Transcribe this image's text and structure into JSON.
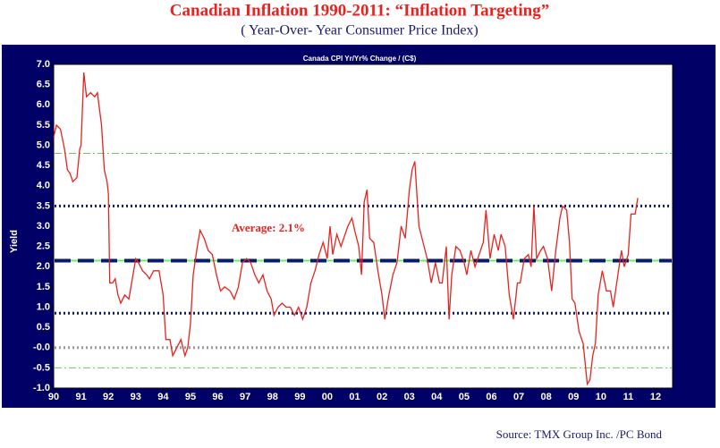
{
  "chart_data": {
    "type": "line",
    "title": "Canadian Inflation 1990-2011: “Inflation Targeting”",
    "subtitle": "( Year-Over- Year Consumer Price Index)",
    "panel_title": "Canada CPI Yr/Yr% Change / (C$)",
    "y_label": "Yield",
    "annotation": "Average: 2.1%",
    "source": "Source: TMX Group Inc. /PC Bond",
    "xlim": [
      1990,
      2012.62
    ],
    "ylim": [
      -1,
      7
    ],
    "xticks": [
      {
        "value": 1990,
        "label": "90"
      },
      {
        "value": 1991,
        "label": "91"
      },
      {
        "value": 1992,
        "label": "92"
      },
      {
        "value": 1993,
        "label": "93"
      },
      {
        "value": 1994,
        "label": "94"
      },
      {
        "value": 1995,
        "label": "95"
      },
      {
        "value": 1996,
        "label": "96"
      },
      {
        "value": 1997,
        "label": "97"
      },
      {
        "value": 1998,
        "label": "98"
      },
      {
        "value": 1999,
        "label": "99"
      },
      {
        "value": 2000,
        "label": "00"
      },
      {
        "value": 2001,
        "label": "01"
      },
      {
        "value": 2002,
        "label": "02"
      },
      {
        "value": 2003,
        "label": "03"
      },
      {
        "value": 2004,
        "label": "04"
      },
      {
        "value": 2005,
        "label": "05"
      },
      {
        "value": 2006,
        "label": "06"
      },
      {
        "value": 2007,
        "label": "07"
      },
      {
        "value": 2008,
        "label": "08"
      },
      {
        "value": 2009,
        "label": "09"
      },
      {
        "value": 2010,
        "label": "10"
      },
      {
        "value": 2011,
        "label": "11"
      },
      {
        "value": 2012,
        "label": "12"
      }
    ],
    "yticks": [
      {
        "value": 7,
        "label": "7.0"
      },
      {
        "value": 6.5,
        "label": "6.5"
      },
      {
        "value": 6,
        "label": "6.0"
      },
      {
        "value": 5.5,
        "label": "5.5"
      },
      {
        "value": 5,
        "label": "5.0"
      },
      {
        "value": 4.5,
        "label": "4.5"
      },
      {
        "value": 4,
        "label": "4.0"
      },
      {
        "value": 3.5,
        "label": "3.5"
      },
      {
        "value": 3,
        "label": "3.0"
      },
      {
        "value": 2.5,
        "label": "2.5"
      },
      {
        "value": 2,
        "label": "2.0"
      },
      {
        "value": 1.5,
        "label": "1.5"
      },
      {
        "value": 1,
        "label": "1.0"
      },
      {
        "value": 0.5,
        "label": "0.5"
      },
      {
        "value": 0,
        "label": "-0.0"
      },
      {
        "value": -0.5,
        "label": "-0.5"
      },
      {
        "value": -1,
        "label": "-1.0"
      }
    ],
    "reference_lines": [
      {
        "value": 4.8,
        "color": "#66cc66",
        "style": "dashdot"
      },
      {
        "value": -0.5,
        "color": "#66cc66",
        "style": "dashdot"
      },
      {
        "value": 0,
        "color": "#999999",
        "style": "dotted"
      },
      {
        "value": 2.15,
        "color": "#66ee66",
        "style": "solid"
      },
      {
        "value": 2.15,
        "color": "#0a1a6e",
        "style": "dashed"
      },
      {
        "value": 3.5,
        "color": "#0a1a6e",
        "style": "dotted"
      },
      {
        "value": 0.85,
        "color": "#0a1a6e",
        "style": "dotted"
      }
    ],
    "series": [
      {
        "color": "#e8231f",
        "x": [
          1990.0,
          1990.1,
          1990.25,
          1990.4,
          1990.5,
          1990.6,
          1990.7,
          1990.85,
          1990.95,
          1991.0,
          1991.1,
          1991.2,
          1991.35,
          1991.5,
          1991.6,
          1991.75,
          1991.85,
          1991.95,
          1992.0,
          1992.05,
          1992.15,
          1992.25,
          1992.35,
          1992.45,
          1992.6,
          1992.75,
          1992.9,
          1993.0,
          1993.1,
          1993.25,
          1993.4,
          1993.5,
          1993.65,
          1993.85,
          1994.0,
          1994.1,
          1994.25,
          1994.35,
          1994.5,
          1994.65,
          1994.8,
          1994.9,
          1995.0,
          1995.1,
          1995.25,
          1995.35,
          1995.5,
          1995.65,
          1995.8,
          1995.95,
          1996.1,
          1996.25,
          1996.45,
          1996.6,
          1996.75,
          1996.9,
          1997.05,
          1997.2,
          1997.35,
          1997.5,
          1997.65,
          1997.8,
          1997.95,
          1998.05,
          1998.2,
          1998.35,
          1998.5,
          1998.65,
          1998.8,
          1998.95,
          1999.1,
          1999.25,
          1999.4,
          1999.55,
          1999.7,
          1999.85,
          2000.0,
          2000.1,
          2000.2,
          2000.35,
          2000.5,
          2000.6,
          2000.75,
          2000.9,
          2001.0,
          2001.15,
          2001.25,
          2001.35,
          2001.45,
          2001.55,
          2001.7,
          2001.85,
          2002.0,
          2002.1,
          2002.25,
          2002.4,
          2002.55,
          2002.7,
          2002.85,
          2003.0,
          2003.1,
          2003.2,
          2003.35,
          2003.5,
          2003.65,
          2003.8,
          2003.95,
          2004.1,
          2004.2,
          2004.35,
          2004.45,
          2004.55,
          2004.7,
          2004.85,
          2005.0,
          2005.1,
          2005.25,
          2005.4,
          2005.55,
          2005.7,
          2005.8,
          2005.95,
          2006.1,
          2006.25,
          2006.35,
          2006.5,
          2006.65,
          2006.8,
          2006.95,
          2007.05,
          2007.2,
          2007.35,
          2007.45,
          2007.55,
          2007.65,
          2007.8,
          2007.9,
          2008.05,
          2008.2,
          2008.35,
          2008.5,
          2008.6,
          2008.75,
          2008.85,
          2008.95,
          2009.05,
          2009.2,
          2009.35,
          2009.5,
          2009.6,
          2009.7,
          2009.8,
          2009.9,
          2010.05,
          2010.2,
          2010.35,
          2010.45,
          2010.6,
          2010.75,
          2010.85,
          2011.0,
          2011.1,
          2011.25,
          2011.35
        ],
        "values": [
          5.2,
          5.5,
          5.4,
          4.9,
          4.4,
          4.3,
          4.1,
          4.2,
          4.9,
          5.0,
          6.8,
          6.2,
          6.3,
          6.2,
          6.3,
          5.5,
          4.4,
          4.1,
          3.8,
          1.6,
          1.6,
          1.7,
          1.3,
          1.1,
          1.3,
          1.2,
          1.8,
          2.2,
          2.1,
          1.9,
          1.8,
          1.7,
          1.9,
          1.9,
          1.3,
          0.2,
          0.2,
          -0.2,
          0.0,
          0.2,
          -0.2,
          0.0,
          0.6,
          1.8,
          2.5,
          2.9,
          2.7,
          2.4,
          2.3,
          1.8,
          1.4,
          1.5,
          1.4,
          1.2,
          1.5,
          2.1,
          2.2,
          2.1,
          1.8,
          1.6,
          1.8,
          1.4,
          1.2,
          0.8,
          1.0,
          1.1,
          1.0,
          1.0,
          0.8,
          1.0,
          0.7,
          1.0,
          1.6,
          1.9,
          2.3,
          2.6,
          2.2,
          3.0,
          2.3,
          2.8,
          2.5,
          2.7,
          3.0,
          3.2,
          2.9,
          2.5,
          1.8,
          3.6,
          3.9,
          2.7,
          2.6,
          1.9,
          1.3,
          0.7,
          1.3,
          1.8,
          2.1,
          3.0,
          2.7,
          3.9,
          4.4,
          4.6,
          3.0,
          2.6,
          2.2,
          1.6,
          2.1,
          1.6,
          1.6,
          2.5,
          0.7,
          1.8,
          2.5,
          2.4,
          2.1,
          1.8,
          2.4,
          2.0,
          2.3,
          2.6,
          3.4,
          2.2,
          2.8,
          2.4,
          2.8,
          2.5,
          1.3,
          0.7,
          1.6,
          1.6,
          2.2,
          2.3,
          2.0,
          3.5,
          2.2,
          2.4,
          2.5,
          2.2,
          1.4,
          2.4,
          3.2,
          3.5,
          3.4,
          2.6,
          1.2,
          1.1,
          0.4,
          0.1,
          -0.9,
          -0.8,
          -0.2,
          0.1,
          1.3,
          1.9,
          1.4,
          1.4,
          1.0,
          1.7,
          2.4,
          2.0,
          2.3,
          3.3,
          3.3,
          3.7
        ]
      }
    ]
  }
}
